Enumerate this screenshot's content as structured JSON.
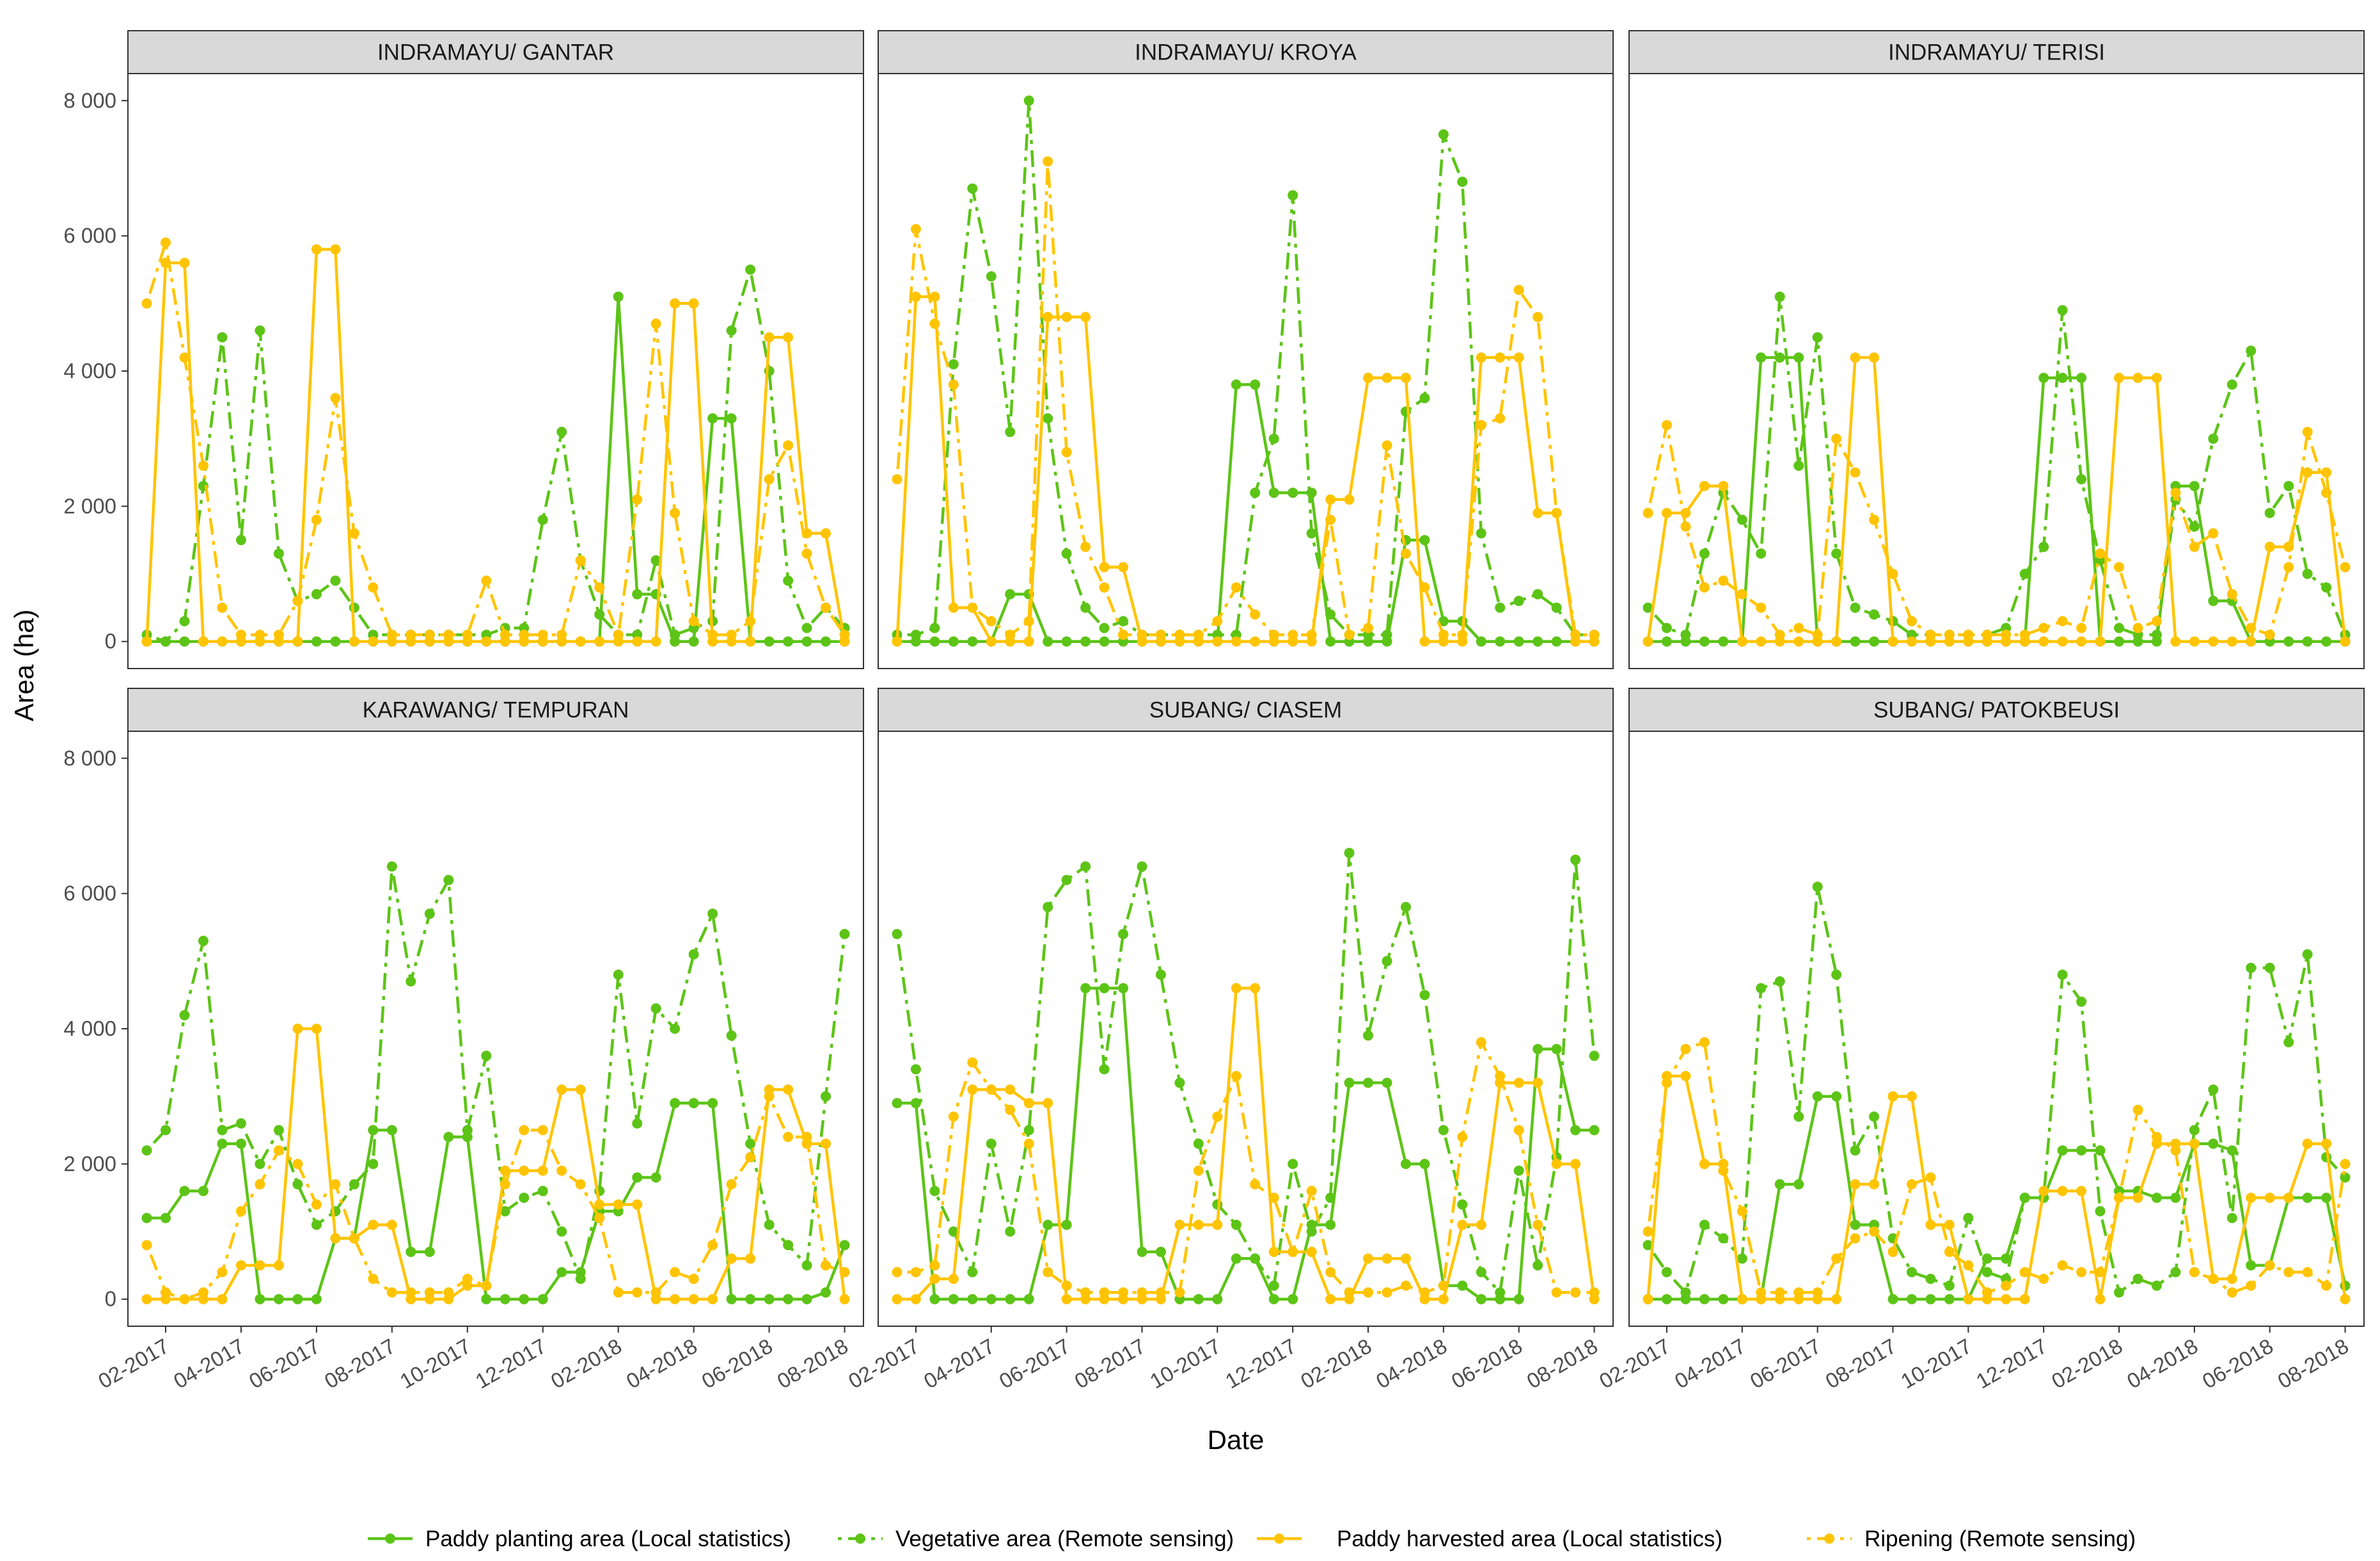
{
  "chart_data": {
    "type": "line",
    "title": "",
    "xlabel": "Date",
    "ylabel": "Area (ha)",
    "ylim": [
      0,
      8000
    ],
    "yticks": [
      0,
      2000,
      4000,
      6000,
      8000
    ],
    "ytick_labels": [
      "0",
      "2 000",
      "4 000",
      "6 000",
      "8 000"
    ],
    "xlim": [
      0,
      19.5
    ],
    "xticks": [
      1,
      3,
      5,
      7,
      9,
      11,
      13,
      15,
      17,
      19
    ],
    "xtick_labels": [
      "02-2017",
      "04-2017",
      "06-2017",
      "08-2017",
      "10-2017",
      "12-2017",
      "02-2018",
      "04-2018",
      "06-2018",
      "08-2018"
    ],
    "x_values_unit": "months since 01-2017",
    "x": [
      0.5,
      1.0,
      1.5,
      2.0,
      2.5,
      3.0,
      3.5,
      4.0,
      4.5,
      5.0,
      5.5,
      6.0,
      6.5,
      7.0,
      7.5,
      8.0,
      8.5,
      9.0,
      9.5,
      10.0,
      10.5,
      11.0,
      11.5,
      12.0,
      12.5,
      13.0,
      13.5,
      14.0,
      14.5,
      15.0,
      15.5,
      16.0,
      16.5,
      17.0,
      17.5,
      18.0,
      18.5,
      19.0
    ],
    "legend": [
      {
        "key": "planting",
        "label": "Paddy planting area (Local statistics)",
        "color": "#5cc416",
        "dash": "solid"
      },
      {
        "key": "vegetative",
        "label": "Vegetative area (Remote sensing)",
        "color": "#5cc416",
        "dash": "dotdash"
      },
      {
        "key": "harvested",
        "label": "Paddy harvested  area (Local statistics)",
        "color": "#ffc400",
        "dash": "solid"
      },
      {
        "key": "ripening",
        "label": "Ripening (Remote sensing)",
        "color": "#ffc400",
        "dash": "dotdash"
      }
    ],
    "panels": [
      {
        "title": "INDRAMAYU/ GANTAR",
        "series": {
          "planting": [
            0,
            0,
            0,
            0,
            0,
            0,
            0,
            0,
            0,
            0,
            0,
            0,
            0,
            0,
            0,
            0,
            0,
            0,
            0,
            0,
            0,
            0,
            0,
            0,
            0,
            5100,
            700,
            700,
            0,
            0,
            3300,
            3300,
            0,
            0,
            0,
            0,
            0,
            0
          ],
          "vegetative": [
            100,
            0,
            300,
            2300,
            4500,
            1500,
            4600,
            1300,
            600,
            700,
            900,
            500,
            100,
            100,
            100,
            100,
            100,
            100,
            100,
            200,
            200,
            1800,
            3100,
            1200,
            400,
            100,
            100,
            1200,
            100,
            200,
            300,
            4600,
            5500,
            4000,
            900,
            200,
            500,
            200
          ],
          "harvested": [
            0,
            5600,
            5600,
            0,
            0,
            0,
            0,
            0,
            0,
            5800,
            5800,
            0,
            0,
            0,
            0,
            0,
            0,
            0,
            0,
            0,
            0,
            0,
            0,
            0,
            0,
            0,
            0,
            0,
            5000,
            5000,
            0,
            0,
            0,
            4500,
            4500,
            1600,
            1600,
            0
          ],
          "ripening": [
            5000,
            5900,
            4200,
            2600,
            500,
            100,
            100,
            100,
            600,
            1800,
            3600,
            1600,
            800,
            100,
            100,
            100,
            100,
            100,
            900,
            100,
            100,
            100,
            100,
            1200,
            800,
            100,
            2100,
            4700,
            1900,
            300,
            100,
            100,
            300,
            2400,
            2900,
            1300,
            500,
            100
          ]
        }
      },
      {
        "title": "INDRAMAYU/ KROYA",
        "series": {
          "planting": [
            0,
            0,
            0,
            0,
            0,
            0,
            700,
            700,
            0,
            0,
            0,
            0,
            0,
            0,
            0,
            0,
            0,
            0,
            3800,
            3800,
            2200,
            2200,
            2200,
            0,
            0,
            0,
            0,
            1500,
            1500,
            300,
            300,
            0,
            0,
            0,
            0,
            0,
            0,
            0
          ],
          "vegetative": [
            100,
            100,
            200,
            4100,
            6700,
            5400,
            3100,
            8000,
            3300,
            1300,
            500,
            200,
            300,
            100,
            100,
            100,
            100,
            100,
            100,
            2200,
            3000,
            6600,
            1600,
            400,
            100,
            100,
            100,
            3400,
            3600,
            7500,
            6800,
            1600,
            500,
            600,
            700,
            500,
            100,
            100
          ],
          "harvested": [
            0,
            5100,
            5100,
            500,
            500,
            0,
            0,
            0,
            4800,
            4800,
            4800,
            1100,
            1100,
            0,
            0,
            0,
            0,
            0,
            0,
            0,
            0,
            0,
            0,
            2100,
            2100,
            3900,
            3900,
            3900,
            0,
            0,
            0,
            4200,
            4200,
            4200,
            1900,
            1900,
            0,
            0
          ],
          "ripening": [
            2400,
            6100,
            4700,
            3800,
            500,
            300,
            100,
            300,
            7100,
            2800,
            1400,
            800,
            100,
            100,
            100,
            100,
            100,
            300,
            800,
            400,
            100,
            100,
            100,
            1800,
            100,
            200,
            2900,
            1300,
            800,
            100,
            100,
            3200,
            3300,
            5200,
            4800,
            1900,
            100,
            100
          ]
        }
      },
      {
        "title": "INDRAMAYU/ TERISI",
        "series": {
          "planting": [
            0,
            0,
            0,
            0,
            0,
            0,
            4200,
            4200,
            4200,
            0,
            0,
            0,
            0,
            0,
            0,
            0,
            0,
            0,
            0,
            0,
            0,
            3900,
            3900,
            3900,
            0,
            0,
            0,
            0,
            2300,
            2300,
            600,
            600,
            0,
            0,
            0,
            0,
            0,
            0
          ],
          "vegetative": [
            500,
            200,
            100,
            1300,
            2200,
            1800,
            1300,
            5100,
            2600,
            4500,
            1300,
            500,
            400,
            300,
            100,
            100,
            100,
            100,
            100,
            200,
            1000,
            1400,
            4900,
            2400,
            1200,
            200,
            100,
            100,
            2100,
            1700,
            3000,
            3800,
            4300,
            1900,
            2300,
            1000,
            800,
            100
          ],
          "harvested": [
            0,
            1900,
            1900,
            2300,
            2300,
            0,
            0,
            0,
            0,
            0,
            0,
            4200,
            4200,
            0,
            0,
            0,
            0,
            0,
            0,
            0,
            0,
            0,
            0,
            0,
            0,
            3900,
            3900,
            3900,
            0,
            0,
            0,
            0,
            0,
            1400,
            1400,
            2500,
            2500,
            0
          ],
          "ripening": [
            1900,
            3200,
            1700,
            800,
            900,
            700,
            500,
            100,
            200,
            100,
            3000,
            2500,
            1800,
            1000,
            300,
            100,
            100,
            100,
            100,
            100,
            100,
            200,
            300,
            200,
            1300,
            1100,
            200,
            300,
            2200,
            1400,
            1600,
            700,
            200,
            100,
            1100,
            3100,
            2200,
            1100
          ]
        }
      },
      {
        "title": "KARAWANG/ TEMPURAN",
        "series": {
          "planting": [
            1200,
            1200,
            1600,
            1600,
            2300,
            2300,
            0,
            0,
            0,
            0,
            900,
            900,
            2500,
            2500,
            700,
            700,
            2400,
            2400,
            0,
            0,
            0,
            0,
            400,
            400,
            1300,
            1300,
            1800,
            1800,
            2900,
            2900,
            2900,
            0,
            0,
            0,
            0,
            0,
            100,
            800
          ],
          "vegetative": [
            2200,
            2500,
            4200,
            5300,
            2500,
            2600,
            2000,
            2500,
            1700,
            1100,
            1300,
            1700,
            2000,
            6400,
            4700,
            5700,
            6200,
            2500,
            3600,
            1300,
            1500,
            1600,
            1000,
            300,
            1600,
            4800,
            2600,
            4300,
            4000,
            5100,
            5700,
            3900,
            2300,
            1100,
            800,
            500,
            3000,
            5400
          ],
          "harvested": [
            0,
            0,
            0,
            0,
            0,
            500,
            500,
            500,
            4000,
            4000,
            900,
            900,
            1100,
            1100,
            0,
            0,
            0,
            200,
            200,
            1900,
            1900,
            1900,
            3100,
            3100,
            1400,
            1400,
            1400,
            0,
            0,
            0,
            0,
            600,
            600,
            3100,
            3100,
            2300,
            2300,
            0
          ],
          "ripening": [
            800,
            100,
            0,
            100,
            400,
            1300,
            1700,
            2200,
            2000,
            1400,
            1700,
            900,
            300,
            100,
            100,
            100,
            100,
            300,
            200,
            1700,
            2500,
            2500,
            1900,
            1700,
            1200,
            100,
            100,
            100,
            400,
            300,
            800,
            1700,
            2100,
            3000,
            2400,
            2400,
            500,
            400
          ]
        }
      },
      {
        "title": "SUBANG/ CIASEM",
        "series": {
          "planting": [
            2900,
            2900,
            0,
            0,
            0,
            0,
            0,
            0,
            1100,
            1100,
            4600,
            4600,
            4600,
            700,
            700,
            0,
            0,
            0,
            600,
            600,
            0,
            0,
            1100,
            1100,
            3200,
            3200,
            3200,
            2000,
            2000,
            200,
            200,
            0,
            0,
            0,
            3700,
            3700,
            2500,
            2500
          ],
          "vegetative": [
            5400,
            3400,
            1600,
            1000,
            400,
            2300,
            1000,
            2500,
            5800,
            6200,
            6400,
            3400,
            5400,
            6400,
            4800,
            3200,
            2300,
            1400,
            1100,
            600,
            200,
            2000,
            1000,
            1500,
            6600,
            3900,
            5000,
            5800,
            4500,
            2500,
            1400,
            400,
            100,
            1900,
            500,
            2100,
            6500,
            3600
          ],
          "harvested": [
            0,
            0,
            300,
            300,
            3100,
            3100,
            3100,
            2900,
            2900,
            0,
            0,
            0,
            0,
            0,
            0,
            1100,
            1100,
            1100,
            4600,
            4600,
            700,
            700,
            700,
            0,
            0,
            600,
            600,
            600,
            0,
            0,
            1100,
            1100,
            3200,
            3200,
            3200,
            2000,
            2000,
            0
          ],
          "ripening": [
            400,
            400,
            500,
            2700,
            3500,
            3100,
            2800,
            2300,
            400,
            200,
            100,
            100,
            100,
            100,
            100,
            100,
            1900,
            2700,
            3300,
            1700,
            1500,
            700,
            1600,
            400,
            100,
            100,
            100,
            200,
            100,
            200,
            2400,
            3800,
            3300,
            2500,
            1100,
            100,
            100,
            100
          ]
        }
      },
      {
        "title": "SUBANG/ PATOKBEUSI",
        "series": {
          "planting": [
            0,
            0,
            0,
            0,
            0,
            0,
            0,
            1700,
            1700,
            3000,
            3000,
            1100,
            1100,
            0,
            0,
            0,
            0,
            0,
            600,
            600,
            1500,
            1500,
            2200,
            2200,
            2200,
            1600,
            1600,
            1500,
            1500,
            2300,
            2300,
            2200,
            500,
            500,
            1500,
            1500,
            1500,
            200
          ],
          "vegetative": [
            800,
            400,
            100,
            1100,
            900,
            600,
            4600,
            4700,
            2700,
            6100,
            4800,
            2200,
            2700,
            900,
            400,
            300,
            200,
            1200,
            400,
            300,
            1500,
            1500,
            4800,
            4400,
            1300,
            100,
            300,
            200,
            400,
            2500,
            3100,
            1200,
            4900,
            4900,
            3800,
            5100,
            2100,
            1800
          ],
          "harvested": [
            0,
            3300,
            3300,
            2000,
            2000,
            0,
            0,
            0,
            0,
            0,
            0,
            1700,
            1700,
            3000,
            3000,
            1100,
            1100,
            0,
            0,
            0,
            0,
            1600,
            1600,
            1600,
            0,
            1500,
            1500,
            2300,
            2300,
            2300,
            300,
            300,
            1500,
            1500,
            1500,
            2300,
            2300,
            0
          ],
          "ripening": [
            1000,
            3200,
            3700,
            3800,
            1900,
            1300,
            100,
            100,
            100,
            100,
            600,
            900,
            1000,
            700,
            1700,
            1800,
            700,
            500,
            100,
            200,
            400,
            300,
            500,
            400,
            400,
            1500,
            2800,
            2400,
            2200,
            400,
            300,
            100,
            200,
            500,
            400,
            400,
            200,
            2000
          ]
        }
      }
    ]
  }
}
